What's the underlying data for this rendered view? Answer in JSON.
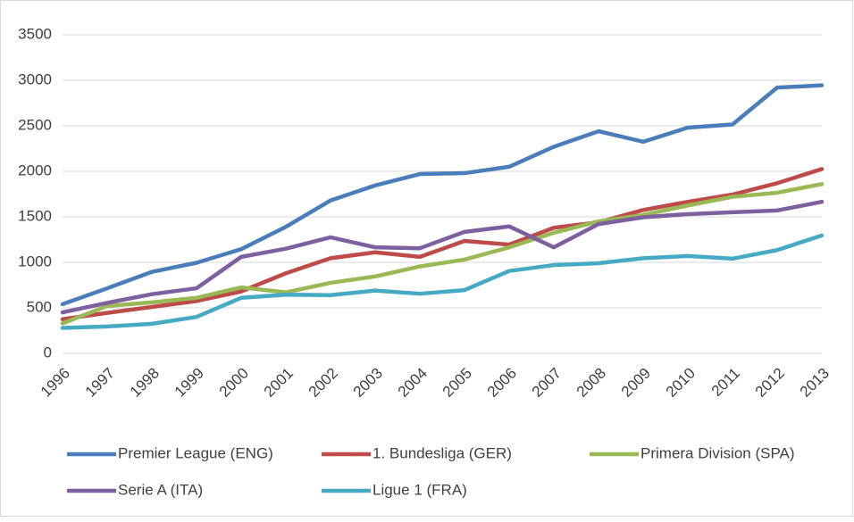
{
  "chart_data": {
    "type": "line",
    "categories": [
      "1996",
      "1997",
      "1998",
      "1999",
      "2000",
      "2001",
      "2002",
      "2003",
      "2004",
      "2005",
      "2006",
      "2007",
      "2008",
      "2009",
      "2010",
      "2011",
      "2012",
      "2013"
    ],
    "series": [
      {
        "name": "Premier League (ENG)",
        "color": "#4a7ebb",
        "values": [
          540,
          715,
          895,
          995,
          1145,
          1390,
          1680,
          1845,
          1970,
          1980,
          2050,
          2270,
          2440,
          2325,
          2480,
          2515,
          2920,
          2945
        ]
      },
      {
        "name": "1. Bundesliga (GER)",
        "color": "#be4b48",
        "values": [
          375,
          445,
          510,
          575,
          680,
          880,
          1045,
          1110,
          1060,
          1235,
          1195,
          1380,
          1440,
          1575,
          1665,
          1745,
          1870,
          2025
        ]
      },
      {
        "name": "Primera Division (SPA)",
        "color": "#98b954",
        "values": [
          330,
          520,
          560,
          610,
          725,
          670,
          775,
          845,
          955,
          1030,
          1165,
          1325,
          1450,
          1520,
          1625,
          1720,
          1765,
          1860
        ]
      },
      {
        "name": "Serie A (ITA)",
        "color": "#7d60a0",
        "values": [
          450,
          555,
          650,
          715,
          1060,
          1150,
          1275,
          1165,
          1155,
          1335,
          1395,
          1165,
          1420,
          1495,
          1530,
          1550,
          1570,
          1665
        ]
      },
      {
        "name": "Ligue 1 (FRA)",
        "color": "#46aac5",
        "values": [
          280,
          295,
          325,
          400,
          610,
          645,
          640,
          690,
          655,
          695,
          905,
          970,
          990,
          1045,
          1070,
          1040,
          1135,
          1295
        ]
      }
    ],
    "ylim": [
      0,
      3500
    ],
    "yticks": [
      0,
      500,
      1000,
      1500,
      2000,
      2500,
      3000,
      3500
    ],
    "grid": true,
    "legend": "bottom"
  }
}
